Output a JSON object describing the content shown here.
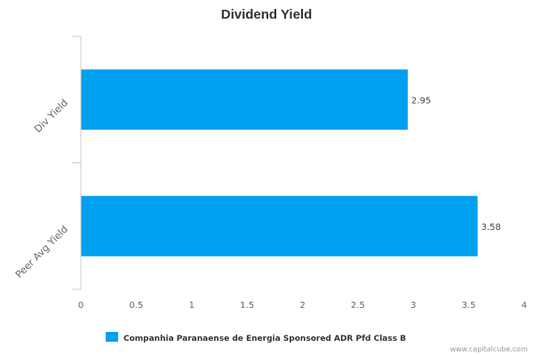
{
  "chart_data": {
    "type": "bar",
    "orientation": "horizontal",
    "title": "Dividend Yield",
    "categories": [
      "Div Yield",
      "Peer Avg Yield"
    ],
    "series": [
      {
        "name": "Companhia Paranaense de Energia Sponsored ADR Pfd Class B",
        "values": [
          2.95,
          3.58
        ],
        "value_labels": [
          "2.95",
          "3.58"
        ],
        "color": "#00a0f0"
      }
    ],
    "xlim": [
      0,
      4
    ],
    "xticks": [
      "0",
      "0.5",
      "1",
      "1.5",
      "2",
      "2.5",
      "3",
      "3.5",
      "4"
    ],
    "grid": false,
    "legend_position": "bottom"
  },
  "credit": "www.capitalcube.com"
}
